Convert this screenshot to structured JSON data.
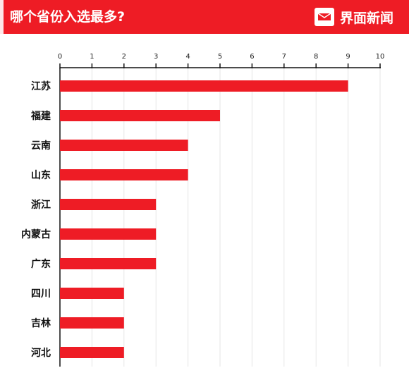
{
  "header": {
    "title": "哪个省份入选最多?",
    "brand": "界面新闻"
  },
  "colors": {
    "accent": "#ee1c25",
    "bar": "#ee1c25",
    "grid": "#e6e6e6",
    "axis": "#111111"
  },
  "chart_data": {
    "type": "bar",
    "orientation": "horizontal",
    "categories": [
      "江苏",
      "福建",
      "云南",
      "山东",
      "浙江",
      "内蒙古",
      "广东",
      "四川",
      "吉林",
      "河北"
    ],
    "values": [
      9,
      5,
      4,
      4,
      3,
      3,
      3,
      2,
      2,
      2
    ],
    "xlim": [
      0,
      10
    ],
    "xticks": [
      0,
      1,
      2,
      3,
      4,
      5,
      6,
      7,
      8,
      9,
      10
    ],
    "axis_position": "top",
    "grid": true,
    "title": "",
    "xlabel": "",
    "ylabel": ""
  }
}
